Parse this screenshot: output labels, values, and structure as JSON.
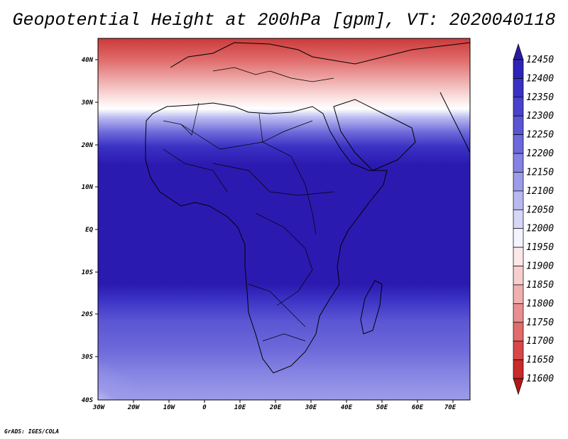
{
  "title": "Geopotential Height at 200hPa [gpm], VT: 2020040118",
  "credit": "GrADS: IGES/COLA",
  "lat_labels": [
    "40N",
    "30N",
    "20N",
    "10N",
    "EQ",
    "10S",
    "20S",
    "30S",
    "40S"
  ],
  "lon_labels": [
    "30W",
    "20W",
    "10W",
    "0",
    "10E",
    "20E",
    "30E",
    "40E",
    "50E",
    "60E",
    "70E"
  ],
  "colorbar": {
    "levels": [
      "12450",
      "12400",
      "12350",
      "12300",
      "12250",
      "12200",
      "12150",
      "12100",
      "12050",
      "12000",
      "11950",
      "11900",
      "11850",
      "11800",
      "11750",
      "11700",
      "11650",
      "11600"
    ],
    "colors": [
      "#2b1a9e",
      "#2e23b8",
      "#3a31c4",
      "#4a42cc",
      "#5a55d3",
      "#6d69da",
      "#8482e2",
      "#9d9ce9",
      "#b9b9f1",
      "#d6d6f8",
      "#f4f4ff",
      "#fce8e8",
      "#f7cfcf",
      "#f0b0b0",
      "#e98f8f",
      "#e06c6c",
      "#d94848",
      "#c92a2a",
      "#b01818"
    ]
  },
  "colors": {
    "deep_blue": "#2a18a8",
    "mid_blue": "#5a55d3",
    "light": "#f4f4ff",
    "red": "#d94848"
  }
}
